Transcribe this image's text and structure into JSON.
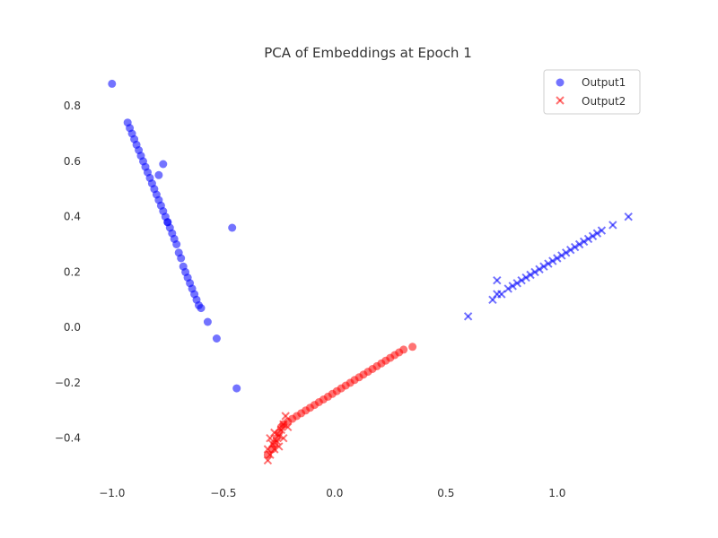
{
  "chart_data": {
    "type": "scatter",
    "title": "PCA of Embeddings at Epoch 1",
    "xlabel": "",
    "ylabel": "",
    "xlim": [
      -1.1,
      1.4
    ],
    "ylim": [
      -0.55,
      0.93
    ],
    "x_ticks": [
      -1.0,
      -0.5,
      0.0,
      0.5,
      1.0
    ],
    "x_tick_labels": [
      "−1.0",
      "−0.5",
      "0.0",
      "0.5",
      "1.0"
    ],
    "y_ticks": [
      -0.4,
      -0.2,
      0.0,
      0.2,
      0.4,
      0.6,
      0.8
    ],
    "y_tick_labels": [
      "−0.4",
      "−0.2",
      "0.0",
      "0.2",
      "0.4",
      "0.6",
      "0.8"
    ],
    "grid": false,
    "legend": {
      "position": "top-right",
      "entries": [
        "Output1",
        "Output2"
      ]
    },
    "series": [
      {
        "name": "Output1",
        "marker": "circle",
        "groups": [
          {
            "color": "#0000ff",
            "points": [
              [
                -1.0,
                0.88
              ],
              [
                -0.93,
                0.74
              ],
              [
                -0.92,
                0.72
              ],
              [
                -0.91,
                0.7
              ],
              [
                -0.9,
                0.68
              ],
              [
                -0.89,
                0.66
              ],
              [
                -0.88,
                0.64
              ],
              [
                -0.87,
                0.62
              ],
              [
                -0.86,
                0.6
              ],
              [
                -0.85,
                0.58
              ],
              [
                -0.84,
                0.56
              ],
              [
                -0.83,
                0.54
              ],
              [
                -0.82,
                0.52
              ],
              [
                -0.81,
                0.5
              ],
              [
                -0.8,
                0.48
              ],
              [
                -0.79,
                0.46
              ],
              [
                -0.78,
                0.44
              ],
              [
                -0.77,
                0.42
              ],
              [
                -0.76,
                0.4
              ],
              [
                -0.75,
                0.38
              ],
              [
                -0.74,
                0.36
              ],
              [
                -0.73,
                0.34
              ],
              [
                -0.72,
                0.32
              ],
              [
                -0.71,
                0.3
              ],
              [
                -0.7,
                0.27
              ],
              [
                -0.69,
                0.25
              ],
              [
                -0.68,
                0.22
              ],
              [
                -0.67,
                0.2
              ],
              [
                -0.66,
                0.18
              ],
              [
                -0.65,
                0.16
              ],
              [
                -0.64,
                0.14
              ],
              [
                -0.63,
                0.12
              ],
              [
                -0.62,
                0.1
              ],
              [
                -0.61,
                0.08
              ],
              [
                -0.6,
                0.07
              ],
              [
                -0.79,
                0.55
              ],
              [
                -0.77,
                0.59
              ],
              [
                -0.75,
                0.38
              ],
              [
                -0.46,
                0.36
              ],
              [
                -0.57,
                0.02
              ],
              [
                -0.53,
                -0.04
              ],
              [
                -0.44,
                -0.22
              ]
            ]
          },
          {
            "color": "#ff0000",
            "points": [
              [
                -0.3,
                -0.46
              ],
              [
                -0.28,
                -0.44
              ],
              [
                -0.27,
                -0.42
              ],
              [
                -0.26,
                -0.4
              ],
              [
                -0.25,
                -0.38
              ],
              [
                -0.24,
                -0.36
              ],
              [
                -0.23,
                -0.35
              ],
              [
                -0.21,
                -0.34
              ],
              [
                -0.19,
                -0.33
              ],
              [
                -0.17,
                -0.32
              ],
              [
                -0.15,
                -0.31
              ],
              [
                -0.13,
                -0.3
              ],
              [
                -0.11,
                -0.29
              ],
              [
                -0.09,
                -0.28
              ],
              [
                -0.07,
                -0.27
              ],
              [
                -0.05,
                -0.26
              ],
              [
                -0.03,
                -0.25
              ],
              [
                -0.01,
                -0.24
              ],
              [
                0.01,
                -0.23
              ],
              [
                0.03,
                -0.22
              ],
              [
                0.05,
                -0.21
              ],
              [
                0.07,
                -0.2
              ],
              [
                0.09,
                -0.19
              ],
              [
                0.11,
                -0.18
              ],
              [
                0.13,
                -0.17
              ],
              [
                0.15,
                -0.16
              ],
              [
                0.17,
                -0.15
              ],
              [
                0.19,
                -0.14
              ],
              [
                0.21,
                -0.13
              ],
              [
                0.23,
                -0.12
              ],
              [
                0.25,
                -0.11
              ],
              [
                0.27,
                -0.1
              ],
              [
                0.29,
                -0.09
              ],
              [
                0.31,
                -0.08
              ],
              [
                0.35,
                -0.07
              ]
            ]
          }
        ]
      },
      {
        "name": "Output2",
        "marker": "x",
        "groups": [
          {
            "color": "#0000ff",
            "points": [
              [
                0.6,
                0.04
              ],
              [
                0.71,
                0.1
              ],
              [
                0.73,
                0.12
              ],
              [
                0.73,
                0.17
              ],
              [
                0.75,
                0.12
              ],
              [
                0.78,
                0.14
              ],
              [
                0.8,
                0.15
              ],
              [
                0.82,
                0.16
              ],
              [
                0.84,
                0.17
              ],
              [
                0.86,
                0.18
              ],
              [
                0.88,
                0.19
              ],
              [
                0.9,
                0.2
              ],
              [
                0.92,
                0.21
              ],
              [
                0.94,
                0.22
              ],
              [
                0.96,
                0.23
              ],
              [
                0.98,
                0.24
              ],
              [
                1.0,
                0.25
              ],
              [
                1.02,
                0.26
              ],
              [
                1.04,
                0.27
              ],
              [
                1.06,
                0.28
              ],
              [
                1.08,
                0.29
              ],
              [
                1.1,
                0.3
              ],
              [
                1.12,
                0.31
              ],
              [
                1.14,
                0.32
              ],
              [
                1.16,
                0.33
              ],
              [
                1.18,
                0.34
              ],
              [
                1.2,
                0.35
              ],
              [
                1.25,
                0.37
              ],
              [
                1.32,
                0.4
              ]
            ]
          },
          {
            "color": "#ff0000",
            "points": [
              [
                -0.3,
                -0.48
              ],
              [
                -0.29,
                -0.46
              ],
              [
                -0.3,
                -0.44
              ],
              [
                -0.28,
                -0.42
              ],
              [
                -0.29,
                -0.4
              ],
              [
                -0.27,
                -0.38
              ],
              [
                -0.25,
                -0.39
              ],
              [
                -0.24,
                -0.37
              ],
              [
                -0.23,
                -0.35
              ],
              [
                -0.22,
                -0.32
              ],
              [
                -0.26,
                -0.41
              ],
              [
                -0.27,
                -0.44
              ],
              [
                -0.25,
                -0.43
              ],
              [
                -0.23,
                -0.4
              ],
              [
                -0.21,
                -0.36
              ]
            ]
          }
        ]
      }
    ]
  }
}
